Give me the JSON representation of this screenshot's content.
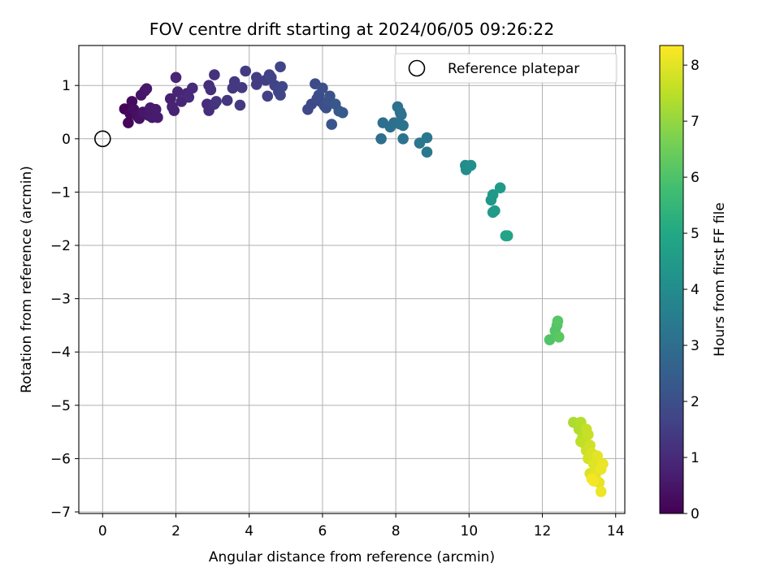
{
  "chart_data": {
    "type": "scatter",
    "title": "FOV centre drift starting at 2024/06/05 09:26:22",
    "xlabel": "Angular distance from reference (arcmin)",
    "ylabel": "Rotation from reference (arcmin)",
    "xlim": [
      -0.65,
      14.25
    ],
    "ylim": [
      -7.03,
      1.75
    ],
    "xticks": [
      0,
      2,
      4,
      6,
      8,
      10,
      12,
      14
    ],
    "yticks": [
      1,
      0,
      -1,
      -2,
      -3,
      -4,
      -5,
      -6,
      -7
    ],
    "xtick_labels": [
      "0",
      "2",
      "4",
      "6",
      "8",
      "10",
      "12",
      "14"
    ],
    "ytick_labels": [
      "1",
      "0",
      "−1",
      "−2",
      "−3",
      "−4",
      "−5",
      "−6",
      "−7"
    ],
    "grid": true,
    "colormap": "viridis",
    "colorbar": {
      "label": "Hours from first FF file",
      "range": [
        0,
        8.35
      ],
      "ticks": [
        0,
        1,
        2,
        3,
        4,
        5,
        6,
        7,
        8
      ],
      "tick_labels": [
        "0",
        "1",
        "2",
        "3",
        "4",
        "5",
        "6",
        "7",
        "8"
      ]
    },
    "legend": {
      "position": "upper right",
      "entries": [
        {
          "label": "Reference platepar",
          "marker": "open circle"
        }
      ]
    },
    "reference_point": {
      "x": 0,
      "y": 0
    },
    "series": [
      {
        "points": [
          {
            "x": 0.6,
            "y": 0.56,
            "c": 0.1
          },
          {
            "x": 0.7,
            "y": 0.3,
            "c": 0.15
          },
          {
            "x": 0.75,
            "y": 0.47,
            "c": 0.2
          },
          {
            "x": 0.8,
            "y": 0.7,
            "c": 0.25
          },
          {
            "x": 0.85,
            "y": 0.55,
            "c": 0.3
          },
          {
            "x": 0.95,
            "y": 0.42,
            "c": 0.35
          },
          {
            "x": 1.0,
            "y": 0.38,
            "c": 0.4
          },
          {
            "x": 1.05,
            "y": 0.82,
            "c": 0.45
          },
          {
            "x": 1.1,
            "y": 0.5,
            "c": 0.5
          },
          {
            "x": 1.15,
            "y": 0.9,
            "c": 0.5
          },
          {
            "x": 1.2,
            "y": 0.94,
            "c": 0.55
          },
          {
            "x": 1.25,
            "y": 0.44,
            "c": 0.55
          },
          {
            "x": 1.3,
            "y": 0.58,
            "c": 0.6
          },
          {
            "x": 1.35,
            "y": 0.4,
            "c": 0.6
          },
          {
            "x": 1.45,
            "y": 0.55,
            "c": 0.65
          },
          {
            "x": 1.5,
            "y": 0.4,
            "c": 0.65
          },
          {
            "x": 1.85,
            "y": 0.75,
            "c": 0.75
          },
          {
            "x": 1.9,
            "y": 0.6,
            "c": 0.8
          },
          {
            "x": 1.95,
            "y": 0.53,
            "c": 0.8
          },
          {
            "x": 2.0,
            "y": 1.15,
            "c": 0.85
          },
          {
            "x": 2.05,
            "y": 0.88,
            "c": 0.85
          },
          {
            "x": 2.15,
            "y": 0.7,
            "c": 0.9
          },
          {
            "x": 2.3,
            "y": 0.85,
            "c": 0.95
          },
          {
            "x": 2.35,
            "y": 0.78,
            "c": 1.0
          },
          {
            "x": 2.45,
            "y": 0.95,
            "c": 1.0
          },
          {
            "x": 2.85,
            "y": 0.65,
            "c": 1.05
          },
          {
            "x": 2.9,
            "y": 0.53,
            "c": 1.1
          },
          {
            "x": 2.9,
            "y": 1.0,
            "c": 1.1
          },
          {
            "x": 2.95,
            "y": 0.92,
            "c": 1.15
          },
          {
            "x": 3.05,
            "y": 0.65,
            "c": 1.2
          },
          {
            "x": 3.05,
            "y": 1.2,
            "c": 1.2
          },
          {
            "x": 3.1,
            "y": 0.7,
            "c": 1.25
          },
          {
            "x": 3.4,
            "y": 0.72,
            "c": 1.3
          },
          {
            "x": 3.55,
            "y": 0.95,
            "c": 1.35
          },
          {
            "x": 3.6,
            "y": 1.07,
            "c": 1.35
          },
          {
            "x": 3.75,
            "y": 0.63,
            "c": 1.4
          },
          {
            "x": 3.8,
            "y": 0.96,
            "c": 1.4
          },
          {
            "x": 3.9,
            "y": 1.27,
            "c": 1.45
          },
          {
            "x": 4.2,
            "y": 1.15,
            "c": 1.5
          },
          {
            "x": 4.2,
            "y": 1.02,
            "c": 1.5
          },
          {
            "x": 4.45,
            "y": 1.1,
            "c": 1.55
          },
          {
            "x": 4.5,
            "y": 0.8,
            "c": 1.6
          },
          {
            "x": 4.55,
            "y": 1.2,
            "c": 1.6
          },
          {
            "x": 4.6,
            "y": 1.15,
            "c": 1.65
          },
          {
            "x": 4.7,
            "y": 1.0,
            "c": 1.65
          },
          {
            "x": 4.8,
            "y": 0.88,
            "c": 1.7
          },
          {
            "x": 4.85,
            "y": 1.35,
            "c": 1.7
          },
          {
            "x": 4.85,
            "y": 0.82,
            "c": 1.75
          },
          {
            "x": 4.9,
            "y": 0.98,
            "c": 1.75
          },
          {
            "x": 5.6,
            "y": 0.55,
            "c": 1.8
          },
          {
            "x": 5.7,
            "y": 0.65,
            "c": 1.85
          },
          {
            "x": 5.8,
            "y": 1.03,
            "c": 1.9
          },
          {
            "x": 5.85,
            "y": 0.75,
            "c": 1.9
          },
          {
            "x": 5.9,
            "y": 0.82,
            "c": 1.95
          },
          {
            "x": 5.95,
            "y": 0.7,
            "c": 1.95
          },
          {
            "x": 6.0,
            "y": 0.95,
            "c": 2.0
          },
          {
            "x": 6.05,
            "y": 0.62,
            "c": 2.0
          },
          {
            "x": 6.1,
            "y": 0.58,
            "c": 2.05
          },
          {
            "x": 6.15,
            "y": 0.7,
            "c": 2.1
          },
          {
            "x": 6.2,
            "y": 0.8,
            "c": 2.15
          },
          {
            "x": 6.25,
            "y": 0.27,
            "c": 2.2
          },
          {
            "x": 6.35,
            "y": 0.65,
            "c": 2.25
          },
          {
            "x": 6.45,
            "y": 0.52,
            "c": 2.3
          },
          {
            "x": 6.55,
            "y": 0.49,
            "c": 2.35
          },
          {
            "x": 7.6,
            "y": 0.0,
            "c": 3.0
          },
          {
            "x": 7.65,
            "y": 0.3,
            "c": 3.0
          },
          {
            "x": 7.85,
            "y": 0.22,
            "c": 3.05
          },
          {
            "x": 7.95,
            "y": 0.3,
            "c": 3.05
          },
          {
            "x": 8.05,
            "y": 0.6,
            "c": 3.1
          },
          {
            "x": 8.1,
            "y": 0.28,
            "c": 3.1
          },
          {
            "x": 8.12,
            "y": 0.5,
            "c": 3.15
          },
          {
            "x": 8.15,
            "y": 0.45,
            "c": 3.15
          },
          {
            "x": 8.2,
            "y": 0.0,
            "c": 3.2
          },
          {
            "x": 8.2,
            "y": 0.25,
            "c": 3.2
          },
          {
            "x": 8.65,
            "y": -0.08,
            "c": 3.3
          },
          {
            "x": 8.85,
            "y": 0.02,
            "c": 3.3
          },
          {
            "x": 8.85,
            "y": -0.25,
            "c": 3.35
          },
          {
            "x": 9.9,
            "y": -0.5,
            "c": 4.0
          },
          {
            "x": 9.92,
            "y": -0.58,
            "c": 4.05
          },
          {
            "x": 10.05,
            "y": -0.5,
            "c": 4.1
          },
          {
            "x": 10.6,
            "y": -1.15,
            "c": 4.4
          },
          {
            "x": 10.65,
            "y": -1.05,
            "c": 4.45
          },
          {
            "x": 10.65,
            "y": -1.38,
            "c": 4.5
          },
          {
            "x": 10.7,
            "y": -1.35,
            "c": 4.5
          },
          {
            "x": 10.85,
            "y": -0.92,
            "c": 4.55
          },
          {
            "x": 11.0,
            "y": -1.82,
            "c": 4.8
          },
          {
            "x": 11.05,
            "y": -1.82,
            "c": 4.85
          },
          {
            "x": 12.2,
            "y": -3.77,
            "c": 6.05
          },
          {
            "x": 12.35,
            "y": -3.6,
            "c": 6.1
          },
          {
            "x": 12.4,
            "y": -3.5,
            "c": 6.1
          },
          {
            "x": 12.42,
            "y": -3.42,
            "c": 6.15
          },
          {
            "x": 12.45,
            "y": -3.72,
            "c": 6.2
          },
          {
            "x": 12.85,
            "y": -5.32,
            "c": 7.3
          },
          {
            "x": 13.0,
            "y": -5.45,
            "c": 7.35
          },
          {
            "x": 13.05,
            "y": -5.32,
            "c": 7.4
          },
          {
            "x": 13.1,
            "y": -5.6,
            "c": 7.45
          },
          {
            "x": 13.05,
            "y": -5.68,
            "c": 7.5
          },
          {
            "x": 13.15,
            "y": -5.72,
            "c": 7.55
          },
          {
            "x": 13.2,
            "y": -5.45,
            "c": 7.6
          },
          {
            "x": 13.25,
            "y": -5.55,
            "c": 7.65
          },
          {
            "x": 13.2,
            "y": -5.85,
            "c": 7.7
          },
          {
            "x": 13.3,
            "y": -5.75,
            "c": 7.75
          },
          {
            "x": 13.25,
            "y": -6.0,
            "c": 7.8
          },
          {
            "x": 13.35,
            "y": -5.9,
            "c": 7.85
          },
          {
            "x": 13.3,
            "y": -6.28,
            "c": 7.9
          },
          {
            "x": 13.4,
            "y": -6.1,
            "c": 7.95
          },
          {
            "x": 13.45,
            "y": -6.3,
            "c": 8.0
          },
          {
            "x": 13.5,
            "y": -5.95,
            "c": 8.0
          },
          {
            "x": 13.55,
            "y": -6.45,
            "c": 8.05
          },
          {
            "x": 13.6,
            "y": -6.2,
            "c": 8.1
          },
          {
            "x": 13.65,
            "y": -6.1,
            "c": 8.1
          },
          {
            "x": 13.6,
            "y": -6.62,
            "c": 8.15
          },
          {
            "x": 13.35,
            "y": -6.38,
            "c": 8.2
          },
          {
            "x": 13.4,
            "y": -6.42,
            "c": 8.25
          }
        ]
      }
    ]
  }
}
